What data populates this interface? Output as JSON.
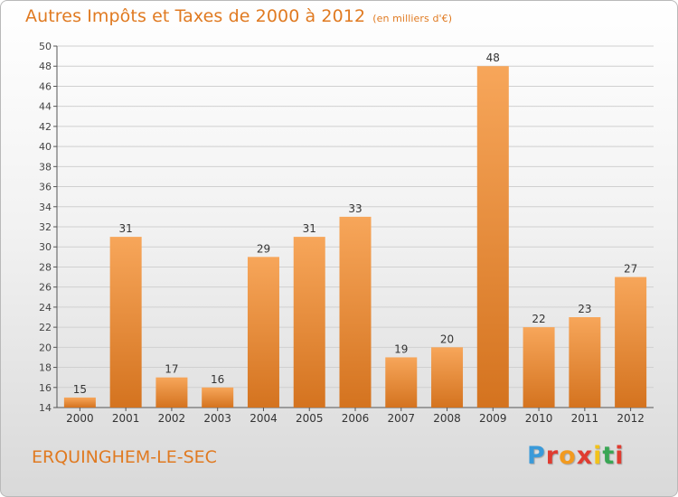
{
  "title": "Autres Impôts et Taxes de 2000 à 2012",
  "unit": "(en milliers d'€)",
  "commune": "ERQUINGHEM-LE-SEC",
  "logo": {
    "text": "Proxiti",
    "letter_colors": [
      "#3a9ad9",
      "#e03c31",
      "#f29a1f",
      "#e03c31",
      "#f2c21a",
      "#3aa655",
      "#e03c31"
    ]
  },
  "colors": {
    "title": "#e07a21",
    "bar_light": "#f7a65a",
    "bar_dark": "#d4731f",
    "grid": "#d0d0d0"
  },
  "chart_data": {
    "type": "bar",
    "categories": [
      "2000",
      "2001",
      "2002",
      "2003",
      "2004",
      "2005",
      "2006",
      "2007",
      "2008",
      "2009",
      "2010",
      "2011",
      "2012"
    ],
    "values": [
      15,
      31,
      17,
      16,
      29,
      31,
      33,
      19,
      20,
      48,
      22,
      23,
      27
    ],
    "ylim": [
      14,
      50
    ],
    "yticks": [
      14,
      16,
      18,
      20,
      22,
      24,
      26,
      28,
      30,
      32,
      34,
      36,
      38,
      40,
      42,
      44,
      46,
      48,
      50
    ],
    "grid": true,
    "data_labels": true
  }
}
